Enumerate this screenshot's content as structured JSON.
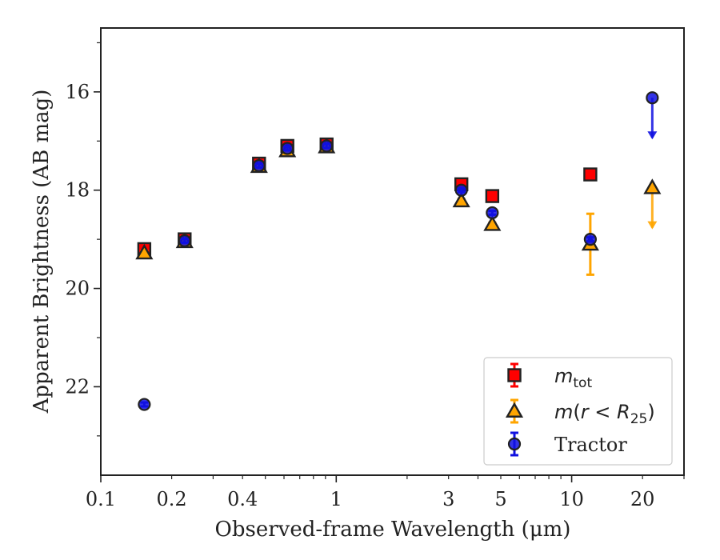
{
  "chart_data": {
    "type": "scatter",
    "xlabel": "Observed-frame Wavelength (μm)",
    "ylabel": "Apparent Brightness (AB mag)",
    "xscale": "log",
    "xlim": [
      0.1,
      30
    ],
    "ylim": [
      23.8,
      14.7
    ],
    "y_inverted": true,
    "grid": false,
    "legend_position": "bottom-right",
    "x_ticks": [
      {
        "value": 0.1,
        "label": "0.1"
      },
      {
        "value": 0.2,
        "label": "0.2"
      },
      {
        "value": 0.4,
        "label": "0.4"
      },
      {
        "value": 1,
        "label": "1"
      },
      {
        "value": 3,
        "label": "3"
      },
      {
        "value": 5,
        "label": "5"
      },
      {
        "value": 10,
        "label": "10"
      },
      {
        "value": 20,
        "label": "20"
      }
    ],
    "y_ticks": [
      {
        "value": 16,
        "label": "16"
      },
      {
        "value": 18,
        "label": "18"
      },
      {
        "value": 20,
        "label": "20"
      },
      {
        "value": 22,
        "label": "22"
      }
    ],
    "series": [
      {
        "name_main": "m",
        "name_sub": "tot",
        "marker": "square",
        "color": "#ff0000",
        "points": [
          {
            "x": 0.153,
            "y": 19.2,
            "yerr": 0.05
          },
          {
            "x": 0.227,
            "y": 19.0,
            "yerr": 0.05
          },
          {
            "x": 0.47,
            "y": 17.46,
            "yerr": 0.05
          },
          {
            "x": 0.62,
            "y": 17.1,
            "yerr": 0.05
          },
          {
            "x": 0.91,
            "y": 17.07,
            "yerr": 0.05
          },
          {
            "x": 3.4,
            "y": 17.88,
            "yerr": 0.05
          },
          {
            "x": 4.6,
            "y": 18.12,
            "yerr": 0.05
          },
          {
            "x": 12.0,
            "y": 17.68,
            "yerr": 0.05
          }
        ]
      },
      {
        "name_main": "m",
        "name_expr": "(r < R",
        "name_sub": "25",
        "name_close": ")",
        "marker": "triangle",
        "color": "#ffa500",
        "points": [
          {
            "x": 0.153,
            "y": 19.28,
            "yerr": 0.04
          },
          {
            "x": 0.227,
            "y": 19.05,
            "yerr": 0.04
          },
          {
            "x": 0.47,
            "y": 17.52,
            "yerr": 0.04
          },
          {
            "x": 0.62,
            "y": 17.2,
            "yerr": 0.04
          },
          {
            "x": 0.91,
            "y": 17.12,
            "yerr": 0.04
          },
          {
            "x": 3.4,
            "y": 18.22,
            "yerr": 0.04
          },
          {
            "x": 4.6,
            "y": 18.7,
            "yerr": 0.04
          },
          {
            "x": 12.0,
            "y": 19.1,
            "yerr": 0.62
          },
          {
            "x": 22.0,
            "y": 17.95,
            "upper_limit": true
          }
        ]
      },
      {
        "name": "Tractor",
        "marker": "circle",
        "color": "#1010e0",
        "points": [
          {
            "x": 0.153,
            "y": 22.36,
            "yerr": 0.04
          },
          {
            "x": 0.227,
            "y": 19.03,
            "yerr": 0.04
          },
          {
            "x": 0.47,
            "y": 17.5,
            "yerr": 0.04
          },
          {
            "x": 0.62,
            "y": 17.15,
            "yerr": 0.04
          },
          {
            "x": 0.91,
            "y": 17.1,
            "yerr": 0.04
          },
          {
            "x": 3.4,
            "y": 18.0,
            "yerr": 0.04
          },
          {
            "x": 4.6,
            "y": 18.46,
            "yerr": 0.04
          },
          {
            "x": 12.0,
            "y": 19.0,
            "yerr": 0.04
          },
          {
            "x": 22.0,
            "y": 16.12,
            "upper_limit": true
          }
        ]
      }
    ]
  }
}
